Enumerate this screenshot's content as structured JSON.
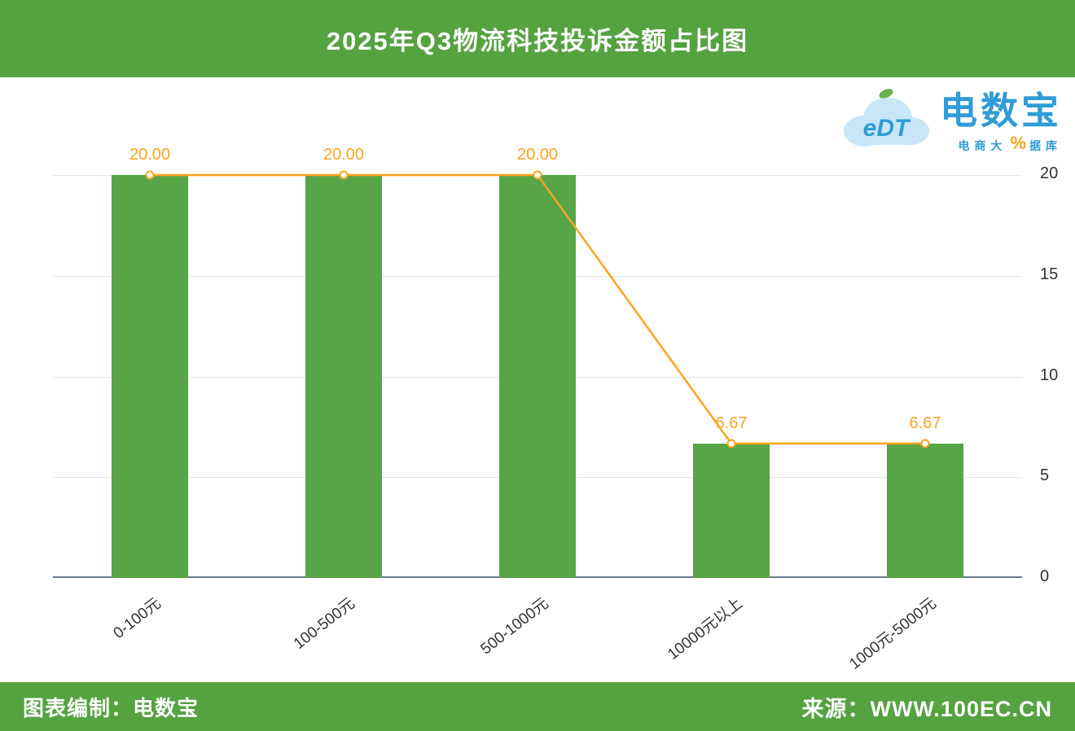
{
  "header": {
    "title": "2025年Q3物流科技投诉金额占比图"
  },
  "logo": {
    "cloud_text": "eDT",
    "brand": "电数宝",
    "tagline_left": "电商大",
    "tagline_percent": "%",
    "tagline_right": "据库"
  },
  "footer": {
    "credit": "图表编制：电数宝",
    "source_label": "来源：",
    "source_url": "WWW.100EC.CN"
  },
  "chart_data": {
    "type": "bar",
    "title": "2025年Q3物流科技投诉金额占比图",
    "categories": [
      "0-100元",
      "100-500元",
      "500-1000元",
      "10000元以上",
      "1000元-5000元"
    ],
    "values": [
      20,
      20,
      20,
      6.67,
      6.67
    ],
    "value_labels": [
      "20.00",
      "20.00",
      "20.00",
      "6.67",
      "6.67"
    ],
    "line_overlay": true,
    "ylim": [
      0,
      20
    ],
    "yticks": [
      0,
      5,
      10,
      15,
      20
    ],
    "y_axis_position": "right",
    "grid": true,
    "legend": "none",
    "colors": {
      "bar": "#57a546",
      "line": "#f9a51d",
      "label": "#f9a51d",
      "banner": "#55a240"
    }
  }
}
